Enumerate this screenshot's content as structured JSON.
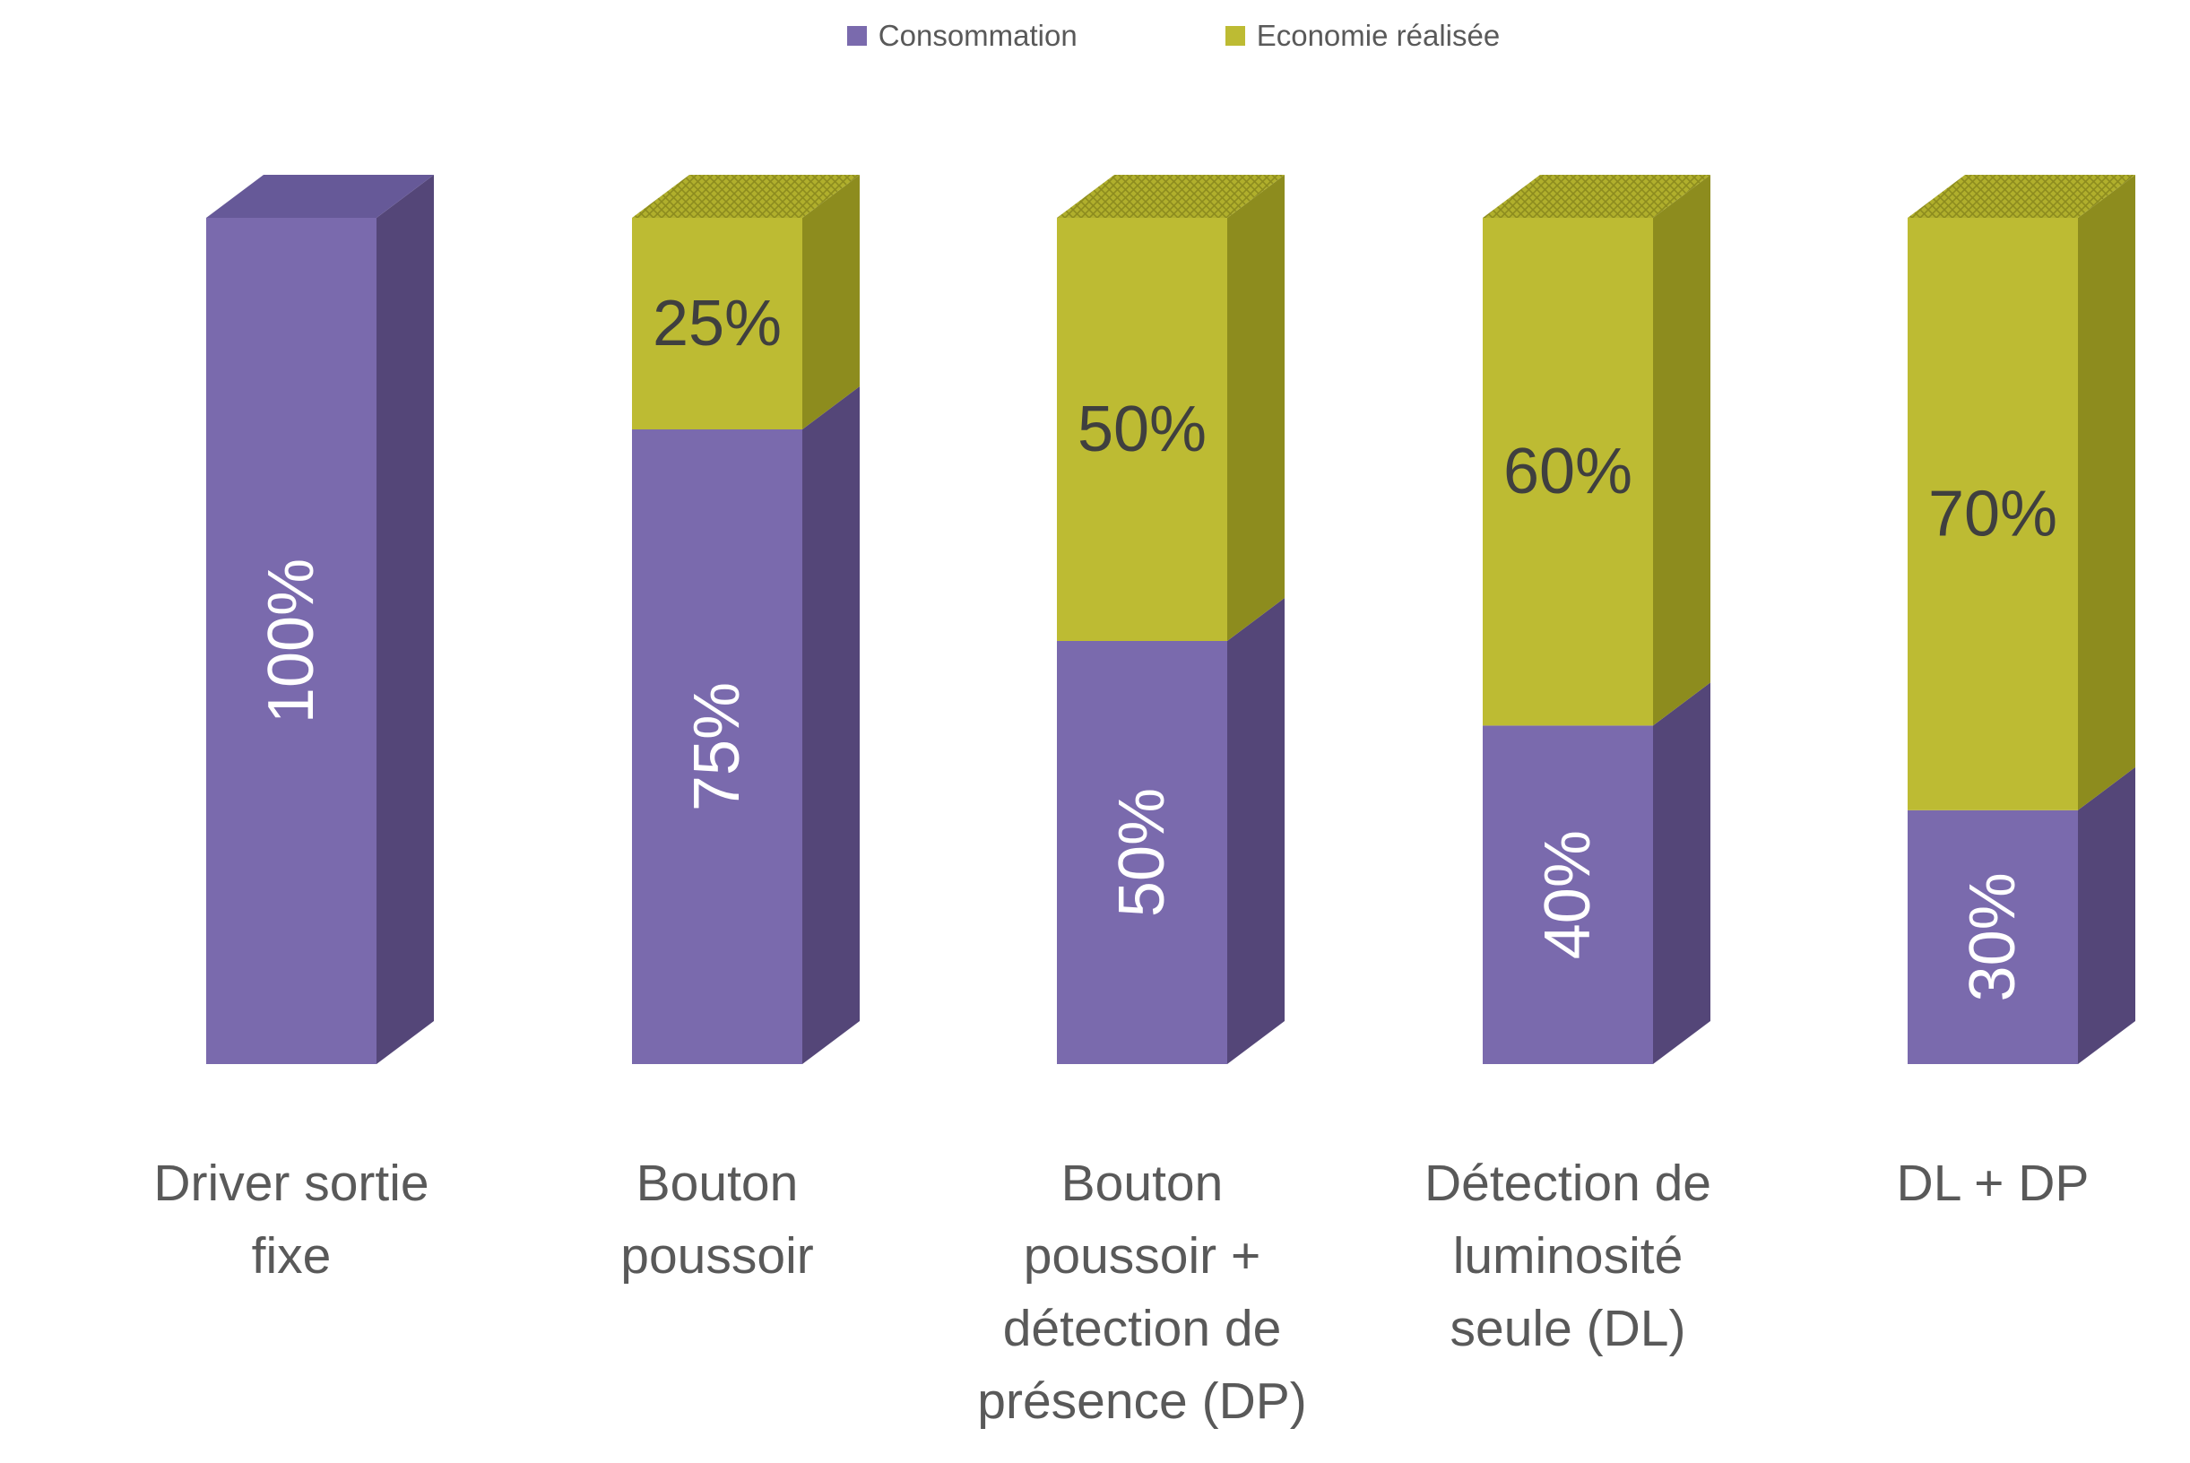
{
  "chart_data": {
    "type": "bar",
    "subtype": "3d-stacked-column",
    "title": "",
    "xlabel": "",
    "ylabel": "",
    "unit": "%",
    "ylim": [
      0,
      100
    ],
    "grid": false,
    "legend_position": "top-center",
    "background_color": "#FFFFFF",
    "categories": [
      "Driver sortie\nfixe",
      "Bouton\npoussoir",
      "Bouton\npoussoir +\ndétection de\nprésence (DP)",
      "Détection de\nluminosité\nseule (DL)",
      "DL + DP"
    ],
    "series": [
      {
        "name": "Consommation",
        "values": [
          100,
          75,
          50,
          40,
          30
        ],
        "data_labels": [
          "100%",
          "75%",
          "50%",
          "40%",
          "30%"
        ],
        "front_color": "#7A6AAD",
        "side_color": "#544678",
        "top_color": "#665998",
        "label_color": "#FFFFFF",
        "label_orientation": "rotated-90"
      },
      {
        "name": "Economie réalisée",
        "values": [
          0,
          25,
          50,
          60,
          70
        ],
        "data_labels": [
          "",
          "25%",
          "50%",
          "60%",
          "70%"
        ],
        "front_color": "#BDBB33",
        "side_color": "#8D8C1E",
        "top_color": "#B0AF2C",
        "top_pattern_color": "#8D8C1E",
        "label_color": "#3F3F3F",
        "label_orientation": "horizontal"
      }
    ]
  },
  "text_colors": {
    "category_labels": "#595959",
    "legend": "#595959"
  }
}
